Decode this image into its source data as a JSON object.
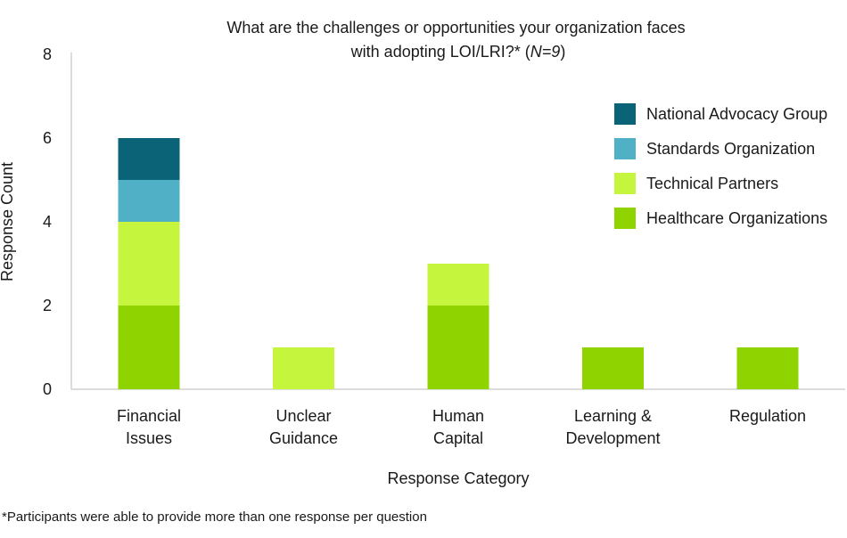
{
  "chart_data": {
    "type": "bar",
    "stacked": true,
    "title_line1": "What are the challenges or opportunities your organization faces",
    "title_line2_prefix": "with adopting LOI/LRI?* (",
    "title_line2_italic": "N=9",
    "title_line2_suffix": ")",
    "xlabel": "Response Category",
    "ylabel": "Response Count",
    "ylim": [
      0,
      8
    ],
    "yticks": [
      0,
      2,
      4,
      6,
      8
    ],
    "categories": [
      [
        "Financial",
        "Issues"
      ],
      [
        "Unclear",
        "Guidance"
      ],
      [
        "Human",
        "Capital"
      ],
      [
        "Learning &",
        "Development"
      ],
      [
        "Regulation"
      ]
    ],
    "series": [
      {
        "name": "Healthcare Organizations",
        "color": "#8fd400",
        "values": [
          2,
          0,
          2,
          1,
          1
        ]
      },
      {
        "name": "Technical Partners",
        "color": "#c6f53d",
        "values": [
          2,
          1,
          1,
          0,
          0
        ]
      },
      {
        "name": "Standards Organization",
        "color": "#4fb0c6",
        "values": [
          1,
          0,
          0,
          0,
          0
        ]
      },
      {
        "name": "National Advocacy Group",
        "color": "#0a6377",
        "values": [
          1,
          0,
          0,
          0,
          0
        ]
      }
    ],
    "legend_order": [
      "National Advocacy Group",
      "Standards Organization",
      "Technical Partners",
      "Healthcare Organizations"
    ],
    "legend_position": "top-right",
    "grid": false
  },
  "footnote": "*Participants were able to provide more than one response per question"
}
